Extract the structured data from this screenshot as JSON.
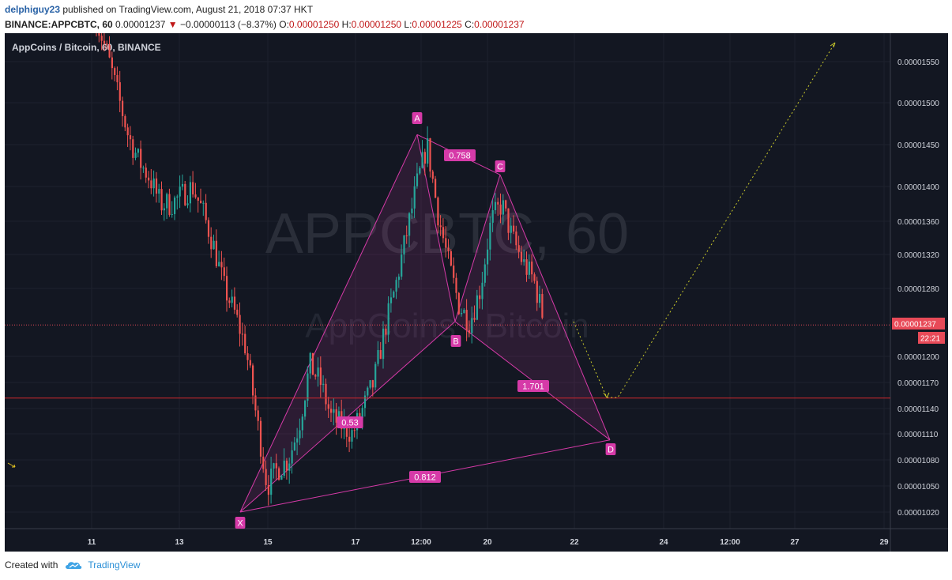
{
  "header": {
    "author": "delphiguy23",
    "published": "published on TradingView.com, August 21, 2018 07:37 HKT",
    "symbol": "BINANCE:APPCBTC, 60",
    "last": "0.00001237",
    "change": "−0.00000113 (−8.37%)",
    "o_label": "O:",
    "o": "0.00001250",
    "h_label": "H:",
    "h": "0.00001250",
    "l_label": "L:",
    "l": "0.00001225",
    "c_label": "C:",
    "c": "0.00001237"
  },
  "chart_title": "AppCoins / Bitcoin, 60, BINANCE",
  "watermark": {
    "line1": "APPCBTC, 60",
    "line2": "AppCoins / Bitcoin"
  },
  "price_label": "0.00001237",
  "countdown": "22:21",
  "footer": {
    "created": "Created with",
    "brand": "TradingView"
  },
  "colors": {
    "background": "#131722",
    "up": "#26a69a",
    "down": "#ef5350",
    "pattern": "#d63aa8",
    "projection": "#c8c82a",
    "support": "#d0282e"
  },
  "chart_data": {
    "type": "candlestick",
    "ylim": [
      1e-05,
      1.58e-05
    ],
    "y_ticks": [
      "0.00001550",
      "0.00001500",
      "0.00001450",
      "0.00001400",
      "0.00001360",
      "0.00001320",
      "0.00001280",
      "0.00001200",
      "0.00001170",
      "0.00001140",
      "0.00001110",
      "0.00001080",
      "0.00001050",
      "0.00001020"
    ],
    "x_ticks": [
      "11",
      "13",
      "15",
      "17",
      "12:00",
      "20",
      "22",
      "24",
      "12:00",
      "27",
      "29"
    ],
    "close_series": [
      1.6e-05,
      1.56e-05,
      1.51e-05,
      1.46e-05,
      1.43e-05,
      1.41e-05,
      1.38e-05,
      1.38e-05,
      1.39e-05,
      1.4e-05,
      1.37e-05,
      1.33e-05,
      1.28e-05,
      1.25e-05,
      1.21e-05,
      1.13e-05,
      1.05e-05,
      1.07e-05,
      1.08e-05,
      1.12e-05,
      1.19e-05,
      1.17e-05,
      1.13e-05,
      1.12e-05,
      1.11e-05,
      1.14e-05,
      1.17e-05,
      1.23e-05,
      1.28e-05,
      1.34e-05,
      1.4e-05,
      1.45e-05,
      1.37e-05,
      1.31e-05,
      1.26e-05,
      1.24e-05,
      1.28e-05,
      1.36e-05,
      1.38e-05,
      1.34e-05,
      1.31e-05,
      1.29e-05,
      1.24e-05
    ],
    "harmonic_pattern": {
      "points": [
        {
          "label": "X",
          "value": 1.02e-05
        },
        {
          "label": "A",
          "value": 1.462e-05
        },
        {
          "label": "B",
          "value": 1.241e-05
        },
        {
          "label": "C",
          "value": 1.414e-05
        },
        {
          "label": "D",
          "value": 1.103e-05
        }
      ],
      "ratios": [
        "0.758",
        "0.53",
        "1.701",
        "0.812"
      ]
    },
    "support_level": 1.152e-05,
    "current_price": 1.237e-05
  }
}
